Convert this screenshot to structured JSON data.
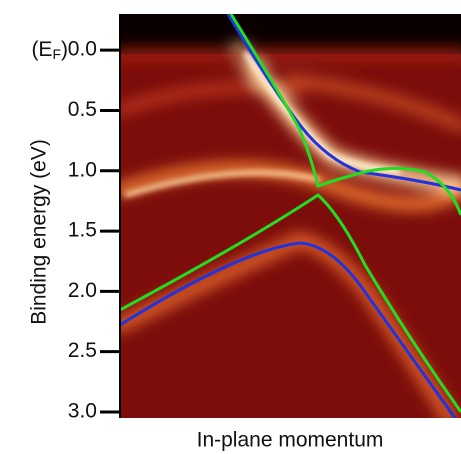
{
  "chart_data": {
    "type": "heatmap",
    "ylabel": "Binding energy (eV)",
    "xlabel": "In-plane momentum",
    "ef_label": {
      "prefix": "(E",
      "sub": "F",
      "suffix": ")"
    },
    "ylim": [
      -0.3,
      3.05
    ],
    "yticks": [
      {
        "value": 0,
        "label": "0.0"
      },
      0.5,
      {
        "value": 1,
        "label": "1.0"
      },
      1.5,
      {
        "value": 2,
        "label": "2.0"
      },
      2.5,
      {
        "value": 3,
        "label": "3.0"
      }
    ]
  }
}
